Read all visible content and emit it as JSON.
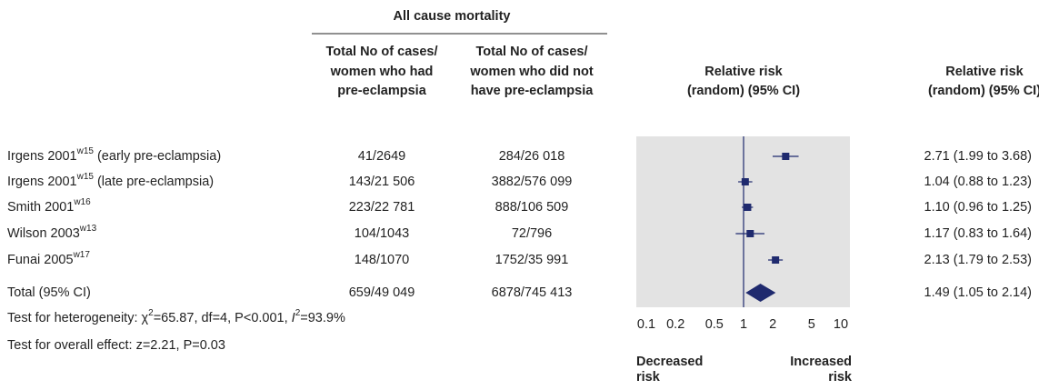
{
  "chart_data": {
    "type": "forest",
    "group_header": "All cause mortality",
    "col1_header": [
      "Total No of cases/",
      "women who had",
      "pre-eclampsia"
    ],
    "col2_header": [
      "Total No of cases/",
      "women who did not",
      "have pre-eclampsia"
    ],
    "plot_header": [
      "Relative risk",
      "(random) (95% CI)"
    ],
    "rr_header": [
      "Relative risk",
      "(random) (95% CI)"
    ],
    "studies": [
      {
        "name": "Irgens 2001",
        "ref": "w15",
        "note": " (early pre-eclampsia)",
        "cases_pe": "41/2649",
        "cases_no": "284/26 018"
      },
      {
        "name": "Irgens 2001",
        "ref": "w15",
        "note": " (late pre-eclampsia)",
        "cases_pe": "143/21 506",
        "cases_no": "3882/576 099"
      },
      {
        "name": "Smith 2001",
        "ref": "w16",
        "note": "",
        "cases_pe": "223/22 781",
        "cases_no": "888/106 509"
      },
      {
        "name": "Wilson 2003",
        "ref": "w13",
        "note": "",
        "cases_pe": "104/1043",
        "cases_no": "72/796"
      },
      {
        "name": "Funai 2005",
        "ref": "w17",
        "note": "",
        "cases_pe": "148/1070",
        "cases_no": "1752/35 991"
      }
    ],
    "values": [
      2.71,
      1.04,
      1.1,
      1.17,
      2.13
    ],
    "lower": [
      1.99,
      0.88,
      0.96,
      0.83,
      1.79
    ],
    "upper": [
      3.68,
      1.23,
      1.25,
      1.64,
      2.53
    ],
    "value_labels": [
      "2.71 (1.99 to 3.68)",
      "1.04 (0.88 to 1.23)",
      "1.10 (0.96 to 1.25)",
      "1.17 (0.83 to 1.64)",
      "2.13 (1.79 to 2.53)"
    ],
    "total": {
      "name": "Total (95% CI)",
      "cases_pe": "659/49 049",
      "cases_no": "6878/745 413",
      "value": 1.49,
      "lower": 1.05,
      "upper": 2.14,
      "value_label": "1.49 (1.05 to 2.14)"
    },
    "heterogeneity": [
      "Test for heterogeneity: χ",
      "2",
      "=65.87, df=4, P<0.001, ",
      "I",
      "2",
      "=93.9%"
    ],
    "overall_effect": "Test for overall effect: z=2.21, P=0.03",
    "xlim": [
      0.1,
      10
    ],
    "xticks": [
      0.1,
      0.2,
      0.5,
      1,
      2,
      5,
      10
    ],
    "log_x": true,
    "null_value": 1,
    "left_label": [
      "Decreased",
      "risk"
    ],
    "right_label": [
      "Increased",
      "risk"
    ],
    "color": "#1f2a6e"
  }
}
